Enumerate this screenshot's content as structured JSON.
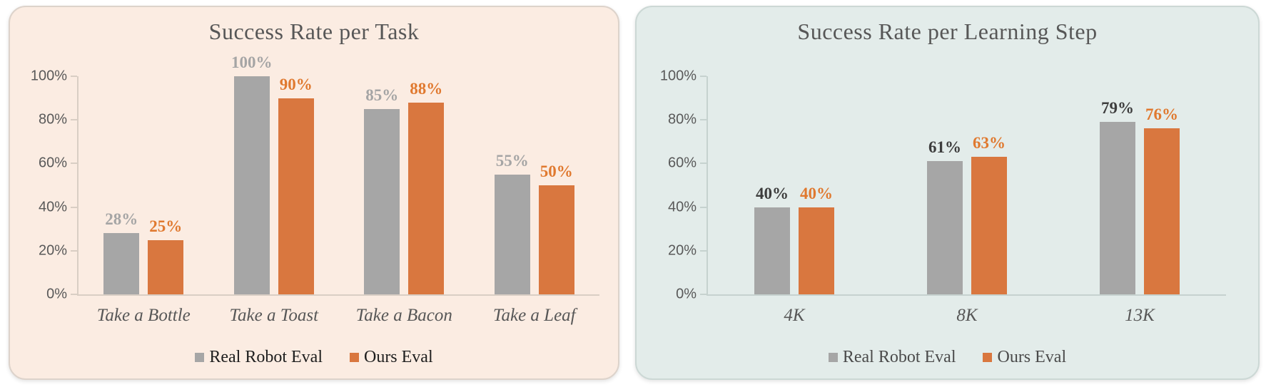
{
  "page": {
    "background_color": "#ffffff"
  },
  "chart_data": [
    {
      "type": "bar",
      "title": "Success Rate per Task",
      "categories": [
        "Take a Bottle",
        "Take a Toast",
        "Take a Bacon",
        "Take a Leaf"
      ],
      "series": [
        {
          "name": "Real Robot Eval",
          "values": [
            28,
            100,
            85,
            55
          ],
          "color": "#a6a6a6",
          "label_color": "#a5a5a5"
        },
        {
          "name": "Ours Eval",
          "values": [
            25,
            90,
            88,
            50
          ],
          "color": "#d9773f",
          "label_color": "#e0792f"
        }
      ],
      "yticks": [
        0,
        20,
        40,
        60,
        80,
        100
      ],
      "ylim": [
        0,
        100
      ],
      "value_suffix": "%",
      "grid": false,
      "legend_position": "bottom",
      "panel_background": "#fbece2",
      "panel_border_color": "#ddd3cb",
      "title_color": "#575757",
      "axis_line_color": "#d9cec4",
      "tick_label_color": "#595959",
      "category_label_color": "#575757",
      "legend_text_color": "#1e1e1e"
    },
    {
      "type": "bar",
      "title": "Success Rate per Learning Step",
      "categories": [
        "4K",
        "8K",
        "13K"
      ],
      "series": [
        {
          "name": "Real Robot Eval",
          "values": [
            40,
            61,
            79
          ],
          "color": "#a6a6a6",
          "label_color": "#3d3d3d"
        },
        {
          "name": "Ours Eval",
          "values": [
            40,
            63,
            76
          ],
          "color": "#d9773f",
          "label_color": "#e0792f"
        }
      ],
      "yticks": [
        0,
        20,
        40,
        60,
        80,
        100
      ],
      "ylim": [
        0,
        100
      ],
      "value_suffix": "%",
      "grid": false,
      "legend_position": "bottom",
      "panel_background": "#e3ecea",
      "panel_border_color": "#ccd8d5",
      "title_color": "#575757",
      "axis_line_color": "#c6d2cf",
      "tick_label_color": "#595959",
      "category_label_color": "#575757",
      "legend_text_color": "#4a4a4a"
    }
  ]
}
